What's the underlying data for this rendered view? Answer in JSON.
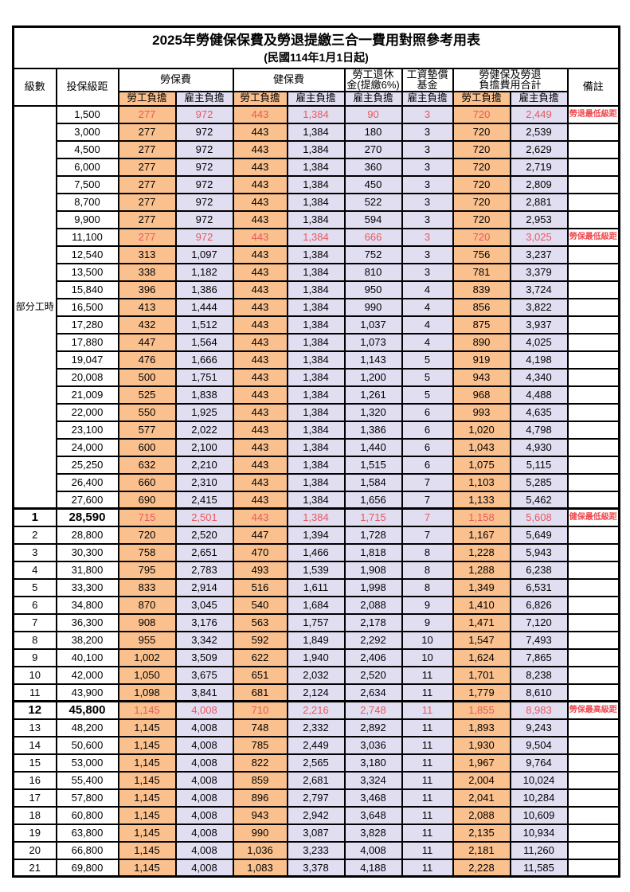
{
  "page": {
    "title": "2025年勞健保保費及勞退提繳三合一費用對照參考用表",
    "subtitle": "(民國114年1月1日起)"
  },
  "colors": {
    "employee_bg": "#fac18f",
    "employer_bg": "#e2def2",
    "highlight_text": "#e8585c",
    "border": "#000000"
  },
  "table": {
    "headers": {
      "level": "級數",
      "bracket": "投保級距",
      "labor_ins": "勞保費",
      "health_ins": "健保費",
      "pension_line1": "勞工退休",
      "pension_line2": "金(提繳6%)",
      "fund_line1": "工資墊償",
      "fund_line2": "基金",
      "total_line1": "勞健保及勞退",
      "total_line2": "負擔費用合計",
      "remark": "備註",
      "employee": "勞工負擔",
      "employer": "雇主負擔"
    },
    "part_time_label": "部分工時",
    "rows": [
      {
        "level": "",
        "bracket": "1,500",
        "li_emp": "277",
        "li_er": "972",
        "hi_emp": "443",
        "hi_er": "1,384",
        "pension": "90",
        "fund": "3",
        "tot_emp": "720",
        "tot_er": "2,449",
        "remark": "勞退最低級距",
        "red": true,
        "emph": false
      },
      {
        "level": "",
        "bracket": "3,000",
        "li_emp": "277",
        "li_er": "972",
        "hi_emp": "443",
        "hi_er": "1,384",
        "pension": "180",
        "fund": "3",
        "tot_emp": "720",
        "tot_er": "2,539",
        "remark": "",
        "red": false,
        "emph": false
      },
      {
        "level": "",
        "bracket": "4,500",
        "li_emp": "277",
        "li_er": "972",
        "hi_emp": "443",
        "hi_er": "1,384",
        "pension": "270",
        "fund": "3",
        "tot_emp": "720",
        "tot_er": "2,629",
        "remark": "",
        "red": false,
        "emph": false
      },
      {
        "level": "",
        "bracket": "6,000",
        "li_emp": "277",
        "li_er": "972",
        "hi_emp": "443",
        "hi_er": "1,384",
        "pension": "360",
        "fund": "3",
        "tot_emp": "720",
        "tot_er": "2,719",
        "remark": "",
        "red": false,
        "emph": false
      },
      {
        "level": "",
        "bracket": "7,500",
        "li_emp": "277",
        "li_er": "972",
        "hi_emp": "443",
        "hi_er": "1,384",
        "pension": "450",
        "fund": "3",
        "tot_emp": "720",
        "tot_er": "2,809",
        "remark": "",
        "red": false,
        "emph": false
      },
      {
        "level": "",
        "bracket": "8,700",
        "li_emp": "277",
        "li_er": "972",
        "hi_emp": "443",
        "hi_er": "1,384",
        "pension": "522",
        "fund": "3",
        "tot_emp": "720",
        "tot_er": "2,881",
        "remark": "",
        "red": false,
        "emph": false
      },
      {
        "level": "",
        "bracket": "9,900",
        "li_emp": "277",
        "li_er": "972",
        "hi_emp": "443",
        "hi_er": "1,384",
        "pension": "594",
        "fund": "3",
        "tot_emp": "720",
        "tot_er": "2,953",
        "remark": "",
        "red": false,
        "emph": false
      },
      {
        "level": "",
        "bracket": "11,100",
        "li_emp": "277",
        "li_er": "972",
        "hi_emp": "443",
        "hi_er": "1,384",
        "pension": "666",
        "fund": "3",
        "tot_emp": "720",
        "tot_er": "3,025",
        "remark": "勞保最低級距",
        "red": true,
        "emph": false
      },
      {
        "level": "",
        "bracket": "12,540",
        "li_emp": "313",
        "li_er": "1,097",
        "hi_emp": "443",
        "hi_er": "1,384",
        "pension": "752",
        "fund": "3",
        "tot_emp": "756",
        "tot_er": "3,237",
        "remark": "",
        "red": false,
        "emph": false
      },
      {
        "level": "",
        "bracket": "13,500",
        "li_emp": "338",
        "li_er": "1,182",
        "hi_emp": "443",
        "hi_er": "1,384",
        "pension": "810",
        "fund": "3",
        "tot_emp": "781",
        "tot_er": "3,379",
        "remark": "",
        "red": false,
        "emph": false
      },
      {
        "level": "",
        "bracket": "15,840",
        "li_emp": "396",
        "li_er": "1,386",
        "hi_emp": "443",
        "hi_er": "1,384",
        "pension": "950",
        "fund": "4",
        "tot_emp": "839",
        "tot_er": "3,724",
        "remark": "",
        "red": false,
        "emph": false
      },
      {
        "level": "",
        "bracket": "16,500",
        "li_emp": "413",
        "li_er": "1,444",
        "hi_emp": "443",
        "hi_er": "1,384",
        "pension": "990",
        "fund": "4",
        "tot_emp": "856",
        "tot_er": "3,822",
        "remark": "",
        "red": false,
        "emph": false
      },
      {
        "level": "",
        "bracket": "17,280",
        "li_emp": "432",
        "li_er": "1,512",
        "hi_emp": "443",
        "hi_er": "1,384",
        "pension": "1,037",
        "fund": "4",
        "tot_emp": "875",
        "tot_er": "3,937",
        "remark": "",
        "red": false,
        "emph": false
      },
      {
        "level": "",
        "bracket": "17,880",
        "li_emp": "447",
        "li_er": "1,564",
        "hi_emp": "443",
        "hi_er": "1,384",
        "pension": "1,073",
        "fund": "4",
        "tot_emp": "890",
        "tot_er": "4,025",
        "remark": "",
        "red": false,
        "emph": false
      },
      {
        "level": "",
        "bracket": "19,047",
        "li_emp": "476",
        "li_er": "1,666",
        "hi_emp": "443",
        "hi_er": "1,384",
        "pension": "1,143",
        "fund": "5",
        "tot_emp": "919",
        "tot_er": "4,198",
        "remark": "",
        "red": false,
        "emph": false
      },
      {
        "level": "",
        "bracket": "20,008",
        "li_emp": "500",
        "li_er": "1,751",
        "hi_emp": "443",
        "hi_er": "1,384",
        "pension": "1,200",
        "fund": "5",
        "tot_emp": "943",
        "tot_er": "4,340",
        "remark": "",
        "red": false,
        "emph": false
      },
      {
        "level": "",
        "bracket": "21,009",
        "li_emp": "525",
        "li_er": "1,838",
        "hi_emp": "443",
        "hi_er": "1,384",
        "pension": "1,261",
        "fund": "5",
        "tot_emp": "968",
        "tot_er": "4,488",
        "remark": "",
        "red": false,
        "emph": false
      },
      {
        "level": "",
        "bracket": "22,000",
        "li_emp": "550",
        "li_er": "1,925",
        "hi_emp": "443",
        "hi_er": "1,384",
        "pension": "1,320",
        "fund": "6",
        "tot_emp": "993",
        "tot_er": "4,635",
        "remark": "",
        "red": false,
        "emph": false
      },
      {
        "level": "",
        "bracket": "23,100",
        "li_emp": "577",
        "li_er": "2,022",
        "hi_emp": "443",
        "hi_er": "1,384",
        "pension": "1,386",
        "fund": "6",
        "tot_emp": "1,020",
        "tot_er": "4,798",
        "remark": "",
        "red": false,
        "emph": false
      },
      {
        "level": "",
        "bracket": "24,000",
        "li_emp": "600",
        "li_er": "2,100",
        "hi_emp": "443",
        "hi_er": "1,384",
        "pension": "1,440",
        "fund": "6",
        "tot_emp": "1,043",
        "tot_er": "4,930",
        "remark": "",
        "red": false,
        "emph": false
      },
      {
        "level": "",
        "bracket": "25,250",
        "li_emp": "632",
        "li_er": "2,210",
        "hi_emp": "443",
        "hi_er": "1,384",
        "pension": "1,515",
        "fund": "6",
        "tot_emp": "1,075",
        "tot_er": "5,115",
        "remark": "",
        "red": false,
        "emph": false
      },
      {
        "level": "",
        "bracket": "26,400",
        "li_emp": "660",
        "li_er": "2,310",
        "hi_emp": "443",
        "hi_er": "1,384",
        "pension": "1,584",
        "fund": "7",
        "tot_emp": "1,103",
        "tot_er": "5,285",
        "remark": "",
        "red": false,
        "emph": false
      },
      {
        "level": "",
        "bracket": "27,600",
        "li_emp": "690",
        "li_er": "2,415",
        "hi_emp": "443",
        "hi_er": "1,384",
        "pension": "1,656",
        "fund": "7",
        "tot_emp": "1,133",
        "tot_er": "5,462",
        "remark": "",
        "red": false,
        "emph": false
      },
      {
        "level": "1",
        "bracket": "28,590",
        "li_emp": "715",
        "li_er": "2,501",
        "hi_emp": "443",
        "hi_er": "1,384",
        "pension": "1,715",
        "fund": "7",
        "tot_emp": "1,158",
        "tot_er": "5,608",
        "remark": "健保最低級距",
        "red": true,
        "emph": true
      },
      {
        "level": "2",
        "bracket": "28,800",
        "li_emp": "720",
        "li_er": "2,520",
        "hi_emp": "447",
        "hi_er": "1,394",
        "pension": "1,728",
        "fund": "7",
        "tot_emp": "1,167",
        "tot_er": "5,649",
        "remark": "",
        "red": false,
        "emph": false
      },
      {
        "level": "3",
        "bracket": "30,300",
        "li_emp": "758",
        "li_er": "2,651",
        "hi_emp": "470",
        "hi_er": "1,466",
        "pension": "1,818",
        "fund": "8",
        "tot_emp": "1,228",
        "tot_er": "5,943",
        "remark": "",
        "red": false,
        "emph": false
      },
      {
        "level": "4",
        "bracket": "31,800",
        "li_emp": "795",
        "li_er": "2,783",
        "hi_emp": "493",
        "hi_er": "1,539",
        "pension": "1,908",
        "fund": "8",
        "tot_emp": "1,288",
        "tot_er": "6,238",
        "remark": "",
        "red": false,
        "emph": false
      },
      {
        "level": "5",
        "bracket": "33,300",
        "li_emp": "833",
        "li_er": "2,914",
        "hi_emp": "516",
        "hi_er": "1,611",
        "pension": "1,998",
        "fund": "8",
        "tot_emp": "1,349",
        "tot_er": "6,531",
        "remark": "",
        "red": false,
        "emph": false
      },
      {
        "level": "6",
        "bracket": "34,800",
        "li_emp": "870",
        "li_er": "3,045",
        "hi_emp": "540",
        "hi_er": "1,684",
        "pension": "2,088",
        "fund": "9",
        "tot_emp": "1,410",
        "tot_er": "6,826",
        "remark": "",
        "red": false,
        "emph": false
      },
      {
        "level": "7",
        "bracket": "36,300",
        "li_emp": "908",
        "li_er": "3,176",
        "hi_emp": "563",
        "hi_er": "1,757",
        "pension": "2,178",
        "fund": "9",
        "tot_emp": "1,471",
        "tot_er": "7,120",
        "remark": "",
        "red": false,
        "emph": false
      },
      {
        "level": "8",
        "bracket": "38,200",
        "li_emp": "955",
        "li_er": "3,342",
        "hi_emp": "592",
        "hi_er": "1,849",
        "pension": "2,292",
        "fund": "10",
        "tot_emp": "1,547",
        "tot_er": "7,493",
        "remark": "",
        "red": false,
        "emph": false
      },
      {
        "level": "9",
        "bracket": "40,100",
        "li_emp": "1,002",
        "li_er": "3,509",
        "hi_emp": "622",
        "hi_er": "1,940",
        "pension": "2,406",
        "fund": "10",
        "tot_emp": "1,624",
        "tot_er": "7,865",
        "remark": "",
        "red": false,
        "emph": false
      },
      {
        "level": "10",
        "bracket": "42,000",
        "li_emp": "1,050",
        "li_er": "3,675",
        "hi_emp": "651",
        "hi_er": "2,032",
        "pension": "2,520",
        "fund": "11",
        "tot_emp": "1,701",
        "tot_er": "8,238",
        "remark": "",
        "red": false,
        "emph": false
      },
      {
        "level": "11",
        "bracket": "43,900",
        "li_emp": "1,098",
        "li_er": "3,841",
        "hi_emp": "681",
        "hi_er": "2,124",
        "pension": "2,634",
        "fund": "11",
        "tot_emp": "1,779",
        "tot_er": "8,610",
        "remark": "",
        "red": false,
        "emph": false
      },
      {
        "level": "12",
        "bracket": "45,800",
        "li_emp": "1,145",
        "li_er": "4,008",
        "hi_emp": "710",
        "hi_er": "2,216",
        "pension": "2,748",
        "fund": "11",
        "tot_emp": "1,855",
        "tot_er": "8,983",
        "remark": "勞保最高級距",
        "red": true,
        "emph": true
      },
      {
        "level": "13",
        "bracket": "48,200",
        "li_emp": "1,145",
        "li_er": "4,008",
        "hi_emp": "748",
        "hi_er": "2,332",
        "pension": "2,892",
        "fund": "11",
        "tot_emp": "1,893",
        "tot_er": "9,243",
        "remark": "",
        "red": false,
        "emph": false
      },
      {
        "level": "14",
        "bracket": "50,600",
        "li_emp": "1,145",
        "li_er": "4,008",
        "hi_emp": "785",
        "hi_er": "2,449",
        "pension": "3,036",
        "fund": "11",
        "tot_emp": "1,930",
        "tot_er": "9,504",
        "remark": "",
        "red": false,
        "emph": false
      },
      {
        "level": "15",
        "bracket": "53,000",
        "li_emp": "1,145",
        "li_er": "4,008",
        "hi_emp": "822",
        "hi_er": "2,565",
        "pension": "3,180",
        "fund": "11",
        "tot_emp": "1,967",
        "tot_er": "9,764",
        "remark": "",
        "red": false,
        "emph": false
      },
      {
        "level": "16",
        "bracket": "55,400",
        "li_emp": "1,145",
        "li_er": "4,008",
        "hi_emp": "859",
        "hi_er": "2,681",
        "pension": "3,324",
        "fund": "11",
        "tot_emp": "2,004",
        "tot_er": "10,024",
        "remark": "",
        "red": false,
        "emph": false
      },
      {
        "level": "17",
        "bracket": "57,800",
        "li_emp": "1,145",
        "li_er": "4,008",
        "hi_emp": "896",
        "hi_er": "2,797",
        "pension": "3,468",
        "fund": "11",
        "tot_emp": "2,041",
        "tot_er": "10,284",
        "remark": "",
        "red": false,
        "emph": false
      },
      {
        "level": "18",
        "bracket": "60,800",
        "li_emp": "1,145",
        "li_er": "4,008",
        "hi_emp": "943",
        "hi_er": "2,942",
        "pension": "3,648",
        "fund": "11",
        "tot_emp": "2,088",
        "tot_er": "10,609",
        "remark": "",
        "red": false,
        "emph": false
      },
      {
        "level": "19",
        "bracket": "63,800",
        "li_emp": "1,145",
        "li_er": "4,008",
        "hi_emp": "990",
        "hi_er": "3,087",
        "pension": "3,828",
        "fund": "11",
        "tot_emp": "2,135",
        "tot_er": "10,934",
        "remark": "",
        "red": false,
        "emph": false
      },
      {
        "level": "20",
        "bracket": "66,800",
        "li_emp": "1,145",
        "li_er": "4,008",
        "hi_emp": "1,036",
        "hi_er": "3,233",
        "pension": "4,008",
        "fund": "11",
        "tot_emp": "2,181",
        "tot_er": "11,260",
        "remark": "",
        "red": false,
        "emph": false
      },
      {
        "level": "21",
        "bracket": "69,800",
        "li_emp": "1,145",
        "li_er": "4,008",
        "hi_emp": "1,083",
        "hi_er": "3,378",
        "pension": "4,188",
        "fund": "11",
        "tot_emp": "2,228",
        "tot_er": "11,585",
        "remark": "",
        "red": false,
        "emph": false
      }
    ]
  }
}
